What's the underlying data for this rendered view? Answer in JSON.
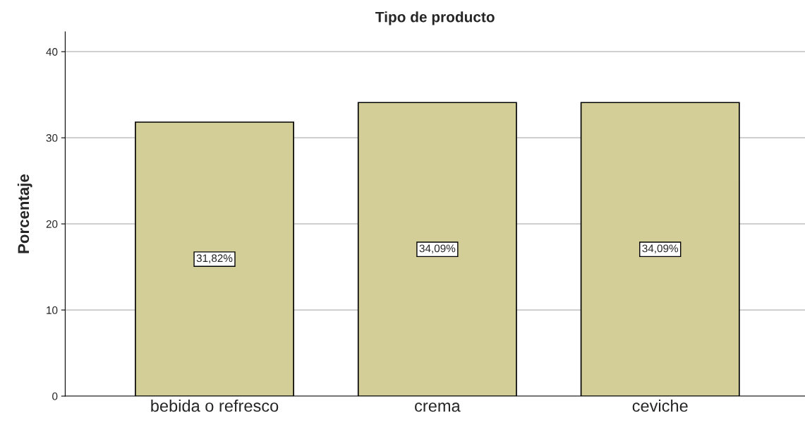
{
  "chart_data": {
    "type": "bar",
    "title": "Tipo de producto",
    "ylabel": "Porcentaje",
    "categories": [
      "bebida o refresco",
      "crema",
      "ceviche"
    ],
    "values": [
      31.82,
      34.09,
      34.09
    ],
    "value_labels": [
      "31,82%",
      "34,09%",
      "34,09%"
    ],
    "color": "#d3ce97",
    "ylim": [
      0,
      42.3
    ],
    "yticks": [
      0,
      10,
      20,
      30,
      40
    ],
    "grid": "y",
    "legend": false
  }
}
